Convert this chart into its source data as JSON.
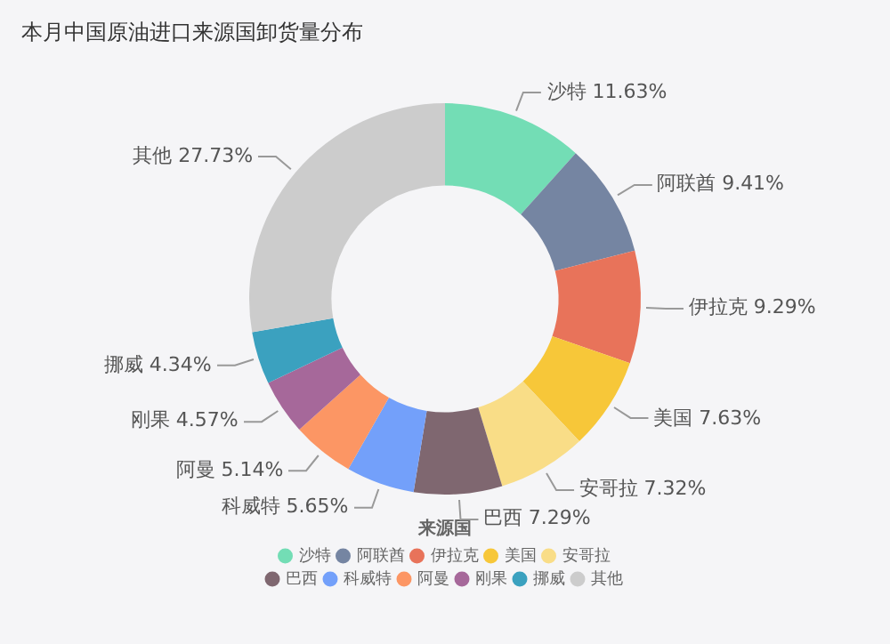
{
  "chart_data": {
    "type": "donut",
    "title": "本月中国原油进口来源国卸货量分布",
    "legend_title": "来源国",
    "legend": "bottom",
    "categories": [
      "沙特",
      "阿联酋",
      "伊拉克",
      "美国",
      "安哥拉",
      "巴西",
      "科威特",
      "阿曼",
      "刚果",
      "挪威",
      "其他"
    ],
    "values": [
      11.63,
      9.41,
      9.29,
      7.63,
      7.32,
      7.29,
      5.65,
      5.14,
      4.57,
      4.34,
      27.73
    ],
    "colors": [
      "#73ddb5",
      "#7585a2",
      "#e8735a",
      "#f7c739",
      "#f9dd87",
      "#7f6770",
      "#73a0fa",
      "#fc9664",
      "#a6689a",
      "#3ba1bf",
      "#cccccc"
    ],
    "value_labels": [
      "11.63%",
      "9.41%",
      "9.29%",
      "7.63%",
      "7.32%",
      "7.29%",
      "5.65%",
      "5.14%",
      "4.57%",
      "4.34%",
      "27.73%"
    ]
  }
}
